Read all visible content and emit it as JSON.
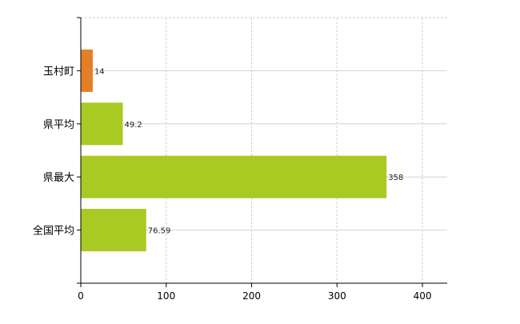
{
  "chart_data": {
    "type": "bar",
    "orientation": "horizontal",
    "categories": [
      "玉村町",
      "県平均",
      "県最大",
      "全国平均"
    ],
    "values": [
      14,
      49.2,
      358,
      76.59
    ],
    "value_labels": [
      "14",
      "49.2",
      "358",
      "76.59"
    ],
    "colors": [
      "#e57f27",
      "#a9c923",
      "#a9c923",
      "#a9c923"
    ],
    "title": "",
    "xlabel": "",
    "ylabel": "",
    "xlim": [
      0,
      429
    ],
    "xticks": [
      0,
      100,
      200,
      300,
      400
    ],
    "xtick_labels": [
      "0",
      "100",
      "200",
      "300",
      "400"
    ],
    "grid": true,
    "legend": "none"
  }
}
